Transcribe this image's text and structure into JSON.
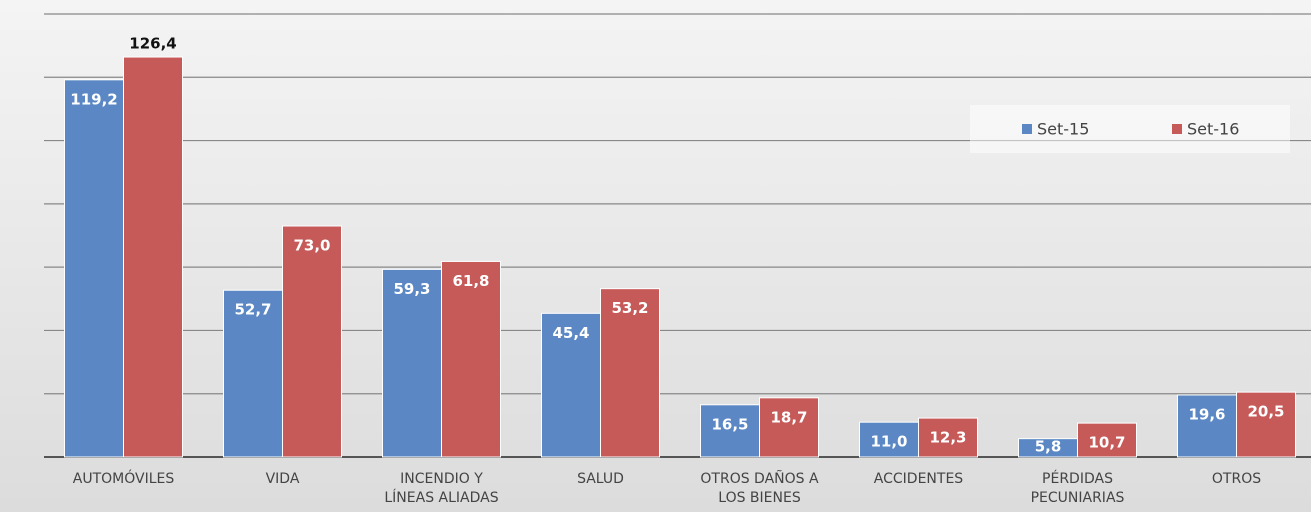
{
  "chart_data": {
    "type": "bar",
    "categories": [
      "AUTOMÓVILES",
      "VIDA",
      "INCENDIO Y\nLÍNEAS ALIADAS",
      "SALUD",
      "OTROS DAÑOS A\nLOS BIENES",
      "ACCIDENTES",
      "PÉRDIDAS\nPECUNIARIAS",
      "OTROS"
    ],
    "series": [
      {
        "name": "Set-15",
        "color": "#5b88c4",
        "values": [
          119.2,
          52.7,
          59.3,
          45.4,
          16.5,
          11.0,
          5.8,
          19.6
        ],
        "value_labels": [
          "119,2",
          "52,7",
          "59,3",
          "45,4",
          "16,5",
          "11,0",
          "5,8",
          "19,6"
        ]
      },
      {
        "name": "Set-16",
        "color": "#c65a58",
        "values": [
          126.4,
          73.0,
          61.8,
          53.2,
          18.7,
          12.3,
          10.7,
          20.5
        ],
        "value_labels": [
          "126,4",
          "73,0",
          "61,8",
          "53,2",
          "18,7",
          "12,3",
          "10,7",
          "20,5"
        ]
      }
    ],
    "ylim": [
      0,
      140
    ],
    "yticks": [
      0,
      20,
      40,
      60,
      80,
      100,
      120,
      140
    ],
    "grid": true,
    "legend": "upper right"
  }
}
